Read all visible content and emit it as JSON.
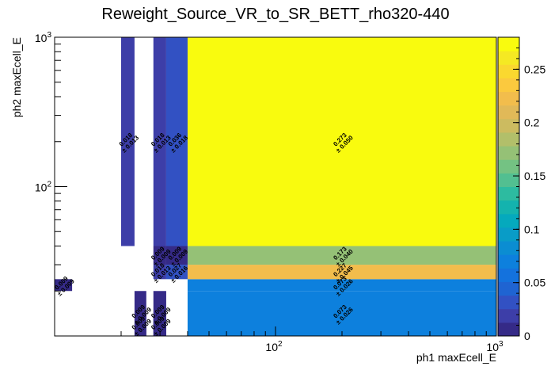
{
  "chart_data": {
    "type": "heatmap",
    "title": "Reweight_Source_VR_to_SR_BETT_rho320-440",
    "xlabel": "ph1 maxEcell_E",
    "ylabel": "ph2 maxEcell_E",
    "x_scale": "log",
    "y_scale": "log",
    "xlim": [
      10,
      1000
    ],
    "ylim": [
      10,
      1000
    ],
    "x_ticks": [
      {
        "base": "10",
        "exp": "2",
        "value": 100
      },
      {
        "base": "10",
        "exp": "3",
        "value": 1000
      }
    ],
    "y_ticks": [
      {
        "base": "10",
        "exp": "2",
        "value": 100
      },
      {
        "base": "10",
        "exp": "3",
        "value": 1000
      }
    ],
    "colorbar": {
      "min": 0,
      "max": 0.28,
      "ticks": [
        "0",
        "0.05",
        "0.1",
        "0.15",
        "0.2",
        "0.25"
      ],
      "tick_values": [
        0,
        0.05,
        0.1,
        0.15,
        0.2,
        0.25
      ],
      "palette": [
        "#352a87",
        "#3d3ea8",
        "#3251c3",
        "#1f64d2",
        "#1472dd",
        "#0d80dd",
        "#0b8dd2",
        "#099cc7",
        "#05a9bd",
        "#14b3ae",
        "#2dbba0",
        "#52bf91",
        "#74c283",
        "#95c176",
        "#b2bf6a",
        "#ccbb60",
        "#e1b958",
        "#f2bd4c",
        "#fbc93e",
        "#fad82f",
        "#f5e923",
        "#f9fb0e"
      ]
    },
    "cells": [
      {
        "x0": 10,
        "x1": 12,
        "y0": 20,
        "y1": 24,
        "value": 0.009,
        "value_label": "0.009",
        "error_label": "± 0.009"
      },
      {
        "x0": 20,
        "x1": 23,
        "y0": 40,
        "y1": 1000,
        "value": 0.018,
        "value_label": "0.018",
        "error_label": "± 0.013"
      },
      {
        "x0": 23,
        "x1": 26,
        "y0": 10,
        "y1": 20,
        "value": 0.009,
        "value_label": "0.009",
        "error_label": "± 0.009"
      },
      {
        "x0": 23,
        "x1": 26,
        "y0": 10,
        "y1": 14,
        "value": 0.009,
        "value_label": "0.009",
        "error_label": "± 0.009"
      },
      {
        "x0": 28,
        "x1": 32,
        "y0": 10,
        "y1": 20,
        "value": 0.009,
        "value_label": "0.009",
        "error_label": "± 0.009"
      },
      {
        "x0": 28,
        "x1": 32,
        "y0": 10,
        "y1": 14,
        "value": 0.009,
        "value_label": "0.009",
        "error_label": "± 0.009"
      },
      {
        "x0": 28,
        "x1": 32,
        "y0": 24,
        "y1": 30,
        "value": 0.018,
        "value_label": "0.018",
        "error_label": "± 0.013"
      },
      {
        "x0": 28,
        "x1": 32,
        "y0": 30,
        "y1": 40,
        "value": 0.009,
        "value_label": "0.009",
        "error_label": "± 0.009"
      },
      {
        "x0": 28,
        "x1": 32,
        "y0": 40,
        "y1": 1000,
        "value": 0.018,
        "value_label": "0.018",
        "error_label": "± 0.013"
      },
      {
        "x0": 32,
        "x1": 40,
        "y0": 24,
        "y1": 30,
        "value": 0.027,
        "value_label": "0.027",
        "error_label": "± 0.016"
      },
      {
        "x0": 32,
        "x1": 40,
        "y0": 30,
        "y1": 40,
        "value": 0.009,
        "value_label": "0.009",
        "error_label": "± 0.009"
      },
      {
        "x0": 32,
        "x1": 40,
        "y0": 40,
        "y1": 1000,
        "value": 0.036,
        "value_label": "0.036",
        "error_label": "± 0.018"
      },
      {
        "x0": 40,
        "x1": 1000,
        "y0": 10,
        "y1": 20,
        "value": 0.073,
        "value_label": "0.073",
        "error_label": "± 0.026"
      },
      {
        "x0": 40,
        "x1": 1000,
        "y0": 20,
        "y1": 24,
        "value": 0.073,
        "value_label": "0.073",
        "error_label": "± 0.026"
      },
      {
        "x0": 40,
        "x1": 1000,
        "y0": 24,
        "y1": 30,
        "value": 0.227,
        "value_label": "0.227",
        "error_label": "± 0.045"
      },
      {
        "x0": 40,
        "x1": 1000,
        "y0": 30,
        "y1": 40,
        "value": 0.173,
        "value_label": "0.173",
        "error_label": "± 0.040"
      },
      {
        "x0": 40,
        "x1": 1000,
        "y0": 40,
        "y1": 1000,
        "value": 0.273,
        "value_label": "0.273",
        "error_label": "± 0.050"
      }
    ]
  }
}
